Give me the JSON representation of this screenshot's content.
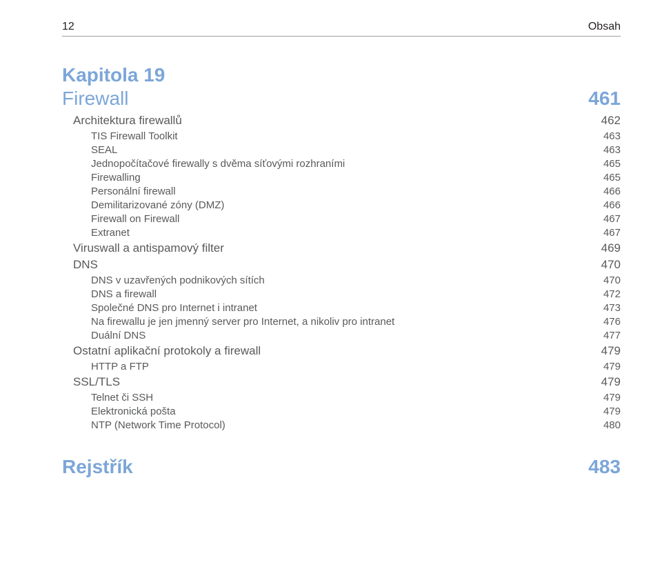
{
  "header": {
    "page_number": "12",
    "title": "Obsah"
  },
  "chapter": {
    "label": "Kapitola 19",
    "title": "Firewall",
    "page": "461"
  },
  "sections": [
    {
      "level": 1,
      "title": "Architektura firewallů",
      "page": "462"
    },
    {
      "level": 2,
      "title": "TIS Firewall Toolkit",
      "page": "463"
    },
    {
      "level": 2,
      "title": "SEAL",
      "page": "463"
    },
    {
      "level": 2,
      "title": "Jednopočítačové firewally s dvěma síťovými rozhraními",
      "page": "465"
    },
    {
      "level": 2,
      "title": "Firewalling",
      "page": "465"
    },
    {
      "level": 2,
      "title": "Personální firewall",
      "page": "466"
    },
    {
      "level": 2,
      "title": "Demilitarizované zóny (DMZ)",
      "page": "466"
    },
    {
      "level": 2,
      "title": "Firewall on Firewall",
      "page": "467"
    },
    {
      "level": 2,
      "title": "Extranet",
      "page": "467"
    },
    {
      "level": 1,
      "title": "Viruswall a antispamový filter",
      "page": "469"
    },
    {
      "level": 1,
      "title": "DNS",
      "page": "470"
    },
    {
      "level": 2,
      "title": "DNS v uzavřených podnikových sítích",
      "page": "470"
    },
    {
      "level": 2,
      "title": "DNS a firewall",
      "page": "472"
    },
    {
      "level": 2,
      "title": "Společné DNS pro Internet i intranet",
      "page": "473"
    },
    {
      "level": 2,
      "title": "Na firewallu je jen jmenný server pro Internet, a nikoliv pro intranet",
      "page": "476"
    },
    {
      "level": 2,
      "title": "Duální DNS",
      "page": "477"
    },
    {
      "level": 1,
      "title": "Ostatní aplikační protokoly a firewall",
      "page": "479"
    },
    {
      "level": 2,
      "title": "HTTP a FTP",
      "page": "479"
    },
    {
      "level": 1,
      "title": "SSL/TLS",
      "page": "479"
    },
    {
      "level": 2,
      "title": "Telnet či SSH",
      "page": "479"
    },
    {
      "level": 2,
      "title": "Elektronická pošta",
      "page": "479"
    },
    {
      "level": 2,
      "title": "NTP (Network Time Protocol)",
      "page": "480"
    }
  ],
  "index": {
    "title": "Rejstřík",
    "page": "483"
  },
  "colors": {
    "heading": "#7ca6d8",
    "body": "#58595b",
    "header_text": "#231f20",
    "rule": "#9e9e9e",
    "background": "#ffffff"
  },
  "typography": {
    "chapter_fontsize_pt": 21,
    "section1_fontsize_pt": 13,
    "section2_fontsize_pt": 11,
    "header_fontsize_pt": 12
  }
}
